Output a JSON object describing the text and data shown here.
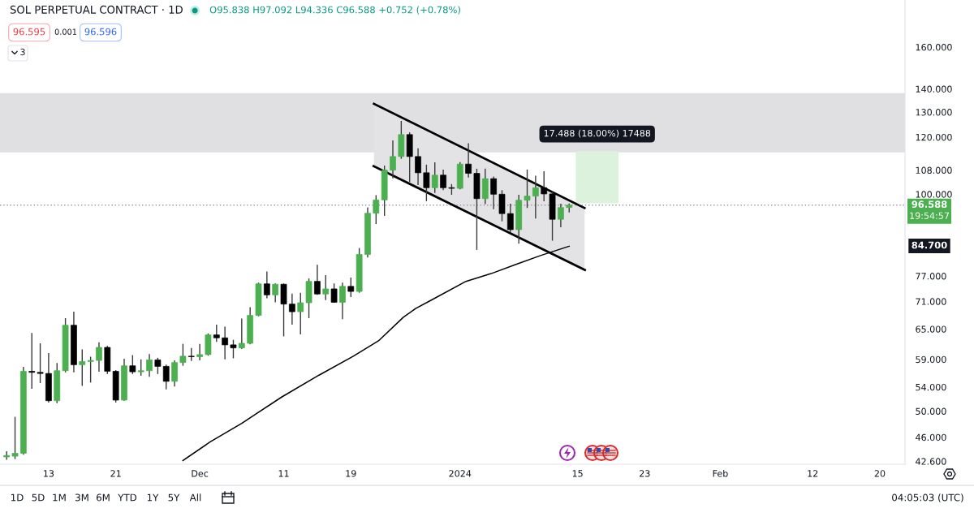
{
  "chart_data": {
    "type": "candlestick",
    "title": "SOL PERPETUAL CONTRACT · 1D",
    "subtitle": "O95.838 H97.092 L94.336 C96.588 +0.752 (+0.78%)",
    "log": true,
    "xlim": [
      "2023-11-07T05:00",
      "2024-02-23T00:00"
    ],
    "ylim": [
      42.2,
      186
    ],
    "xticks": [
      {
        "value": "2023-11-13",
        "label": "13"
      },
      {
        "value": "2023-11-21",
        "label": "21"
      },
      {
        "value": "2023-12-01",
        "label": "Dec"
      },
      {
        "value": "2023-12-11",
        "label": "11"
      },
      {
        "value": "2023-12-19",
        "label": "19"
      },
      {
        "value": "2024-01-01",
        "label": "2024"
      },
      {
        "value": "2024-01-15",
        "label": "15"
      },
      {
        "value": "2024-01-23",
        "label": "23"
      },
      {
        "value": "2024-02-01",
        "label": "Feb"
      },
      {
        "value": "2024-02-12",
        "label": "12"
      },
      {
        "value": "2024-02-20",
        "label": "20"
      }
    ],
    "yticks": [
      {
        "value": 160,
        "label": "160.000"
      },
      {
        "value": 140,
        "label": "140.000"
      },
      {
        "value": 130,
        "label": "130.000"
      },
      {
        "value": 120,
        "label": "120.000"
      },
      {
        "value": 108,
        "label": "108.000"
      },
      {
        "value": 100,
        "label": "100.000"
      },
      {
        "value": 77,
        "label": "77.000"
      },
      {
        "value": 71,
        "label": "71.000"
      },
      {
        "value": 65,
        "label": "65.000"
      },
      {
        "value": 59,
        "label": "59.000"
      },
      {
        "value": 54,
        "label": "54.000"
      },
      {
        "value": 50,
        "label": "50.000"
      },
      {
        "value": 46,
        "label": "46.000"
      },
      {
        "value": 42.6,
        "label": "42.600"
      }
    ],
    "bands": [
      {
        "axis": "y",
        "from": 114.3,
        "to": 138.1,
        "color": "#e0e0e3"
      }
    ],
    "ref_lines": [
      {
        "axis": "y",
        "value": 96.588,
        "label": "96.588",
        "color": "#9598a1",
        "line_style": "dotted"
      }
    ],
    "annotations": [
      "96.595",
      "0.001",
      "96.596",
      "3",
      "19:54:57",
      "84.700",
      {
        "text": "17.488 (18.00%) 17488",
        "x": "2024-01-17T08:00",
        "y": 114.648
      },
      "1D",
      "5D",
      "1M",
      "3M",
      "6M",
      "YTD",
      "1Y",
      "5Y",
      "All",
      "04:05:03 (UTC)"
    ],
    "series": [
      {
        "type": "line",
        "color": "#000000",
        "x": [
          "2023-12-21T18:00",
          "2024-01-15T20:00"
        ],
        "values": [
          133.5,
          95.7
        ],
        "upper": [
          133.5,
          95.7
        ],
        "lower": [
          109.4,
          78.5
        ]
      },
      {
        "type": "line",
        "color": "#000000",
        "x": [
          "2023-12-21T17:00",
          "2024-01-15T21:00"
        ],
        "values": [
          109.4,
          78.5
        ]
      },
      {
        "type": "bar",
        "color": "#dcf2dd",
        "x": [
          "2024-01-17T08:00"
        ],
        "values": [
          17.488
        ],
        "base": [
          97.16
        ]
      },
      {
        "type": "line",
        "color": "#000000",
        "x": [
          "2023-11-29",
          "2023-12-02T05:00",
          "2023-12-06",
          "2023-12-10T18:00",
          "2023-12-15T05:00",
          "2023-12-19T07:00",
          "2023-12-22T07:00",
          "2023-12-25T06:00",
          "2023-12-26T17:00",
          "2023-12-28T14:00",
          "2024-01-01T17:00",
          "2024-01-04T17:00",
          "2024-01-07T16:00",
          "2024-01-10T14:00",
          "2024-01-14"
        ],
        "values": [
          42.7,
          45.3,
          48.1,
          52.3,
          56.1,
          59.6,
          62.6,
          67.5,
          69.4,
          71.3,
          75.7,
          77.6,
          79.9,
          82.2,
          84.7
        ]
      },
      {
        "color": "#3a3a3a",
        "x": [
          "2023-11-08",
          "2023-11-09",
          "2023-11-10",
          "2023-11-11",
          "2023-11-12",
          "2023-11-13",
          "2023-11-14",
          "2023-11-15",
          "2023-11-16",
          "2023-11-17",
          "2023-11-18",
          "2023-11-19",
          "2023-11-20",
          "2023-11-21",
          "2023-11-22",
          "2023-11-23",
          "2023-11-24",
          "2023-11-25",
          "2023-11-26",
          "2023-11-27",
          "2023-11-28",
          "2023-11-29",
          "2023-11-30",
          "2023-12-01",
          "2023-12-02",
          "2023-12-03",
          "2023-12-04",
          "2023-12-05",
          "2023-12-06",
          "2023-12-07",
          "2023-12-08",
          "2023-12-09",
          "2023-12-10",
          "2023-12-11",
          "2023-12-12",
          "2023-12-13",
          "2023-12-14",
          "2023-12-15",
          "2023-12-16",
          "2023-12-17",
          "2023-12-18",
          "2023-12-19",
          "2023-12-20",
          "2023-12-21",
          "2023-12-22",
          "2023-12-23",
          "2023-12-24",
          "2023-12-25",
          "2023-12-26",
          "2023-12-27",
          "2023-12-28",
          "2023-12-29",
          "2023-12-30",
          "2023-12-31",
          "2024-01-01",
          "2024-01-02",
          "2024-01-03",
          "2024-01-04",
          "2024-01-05",
          "2024-01-06",
          "2024-01-07",
          "2024-01-08",
          "2024-01-09",
          "2024-01-10",
          "2024-01-11",
          "2024-01-12",
          "2024-01-13",
          "2024-01-14"
        ],
        "ohlc": [
          [
            43.2,
            44.0,
            42.8,
            43.4
          ],
          [
            43.3,
            49.1,
            42.9,
            43.7
          ],
          [
            43.7,
            57.6,
            43.5,
            56.8
          ],
          [
            56.8,
            64.2,
            53.7,
            56.6
          ],
          [
            56.6,
            62.1,
            54.7,
            56.4
          ],
          [
            56.4,
            60.2,
            51.4,
            51.7
          ],
          [
            51.7,
            58.3,
            51.3,
            56.9
          ],
          [
            56.9,
            67.3,
            56.6,
            65.8
          ],
          [
            65.8,
            68.7,
            56.6,
            58.0
          ],
          [
            58.0,
            60.9,
            54.2,
            58.6
          ],
          [
            58.6,
            59.5,
            54.8,
            58.8
          ],
          [
            58.8,
            62.3,
            56.7,
            61.3
          ],
          [
            61.3,
            61.6,
            56.3,
            56.8
          ],
          [
            56.8,
            57.0,
            51.4,
            51.8
          ],
          [
            51.8,
            59.1,
            51.7,
            57.8
          ],
          [
            57.8,
            59.8,
            56.3,
            56.7
          ],
          [
            56.7,
            59.0,
            56.0,
            56.9
          ],
          [
            56.9,
            60.0,
            55.8,
            58.9
          ],
          [
            58.9,
            59.3,
            56.3,
            57.7
          ],
          [
            57.7,
            58.0,
            53.6,
            55.0
          ],
          [
            55.0,
            58.8,
            54.1,
            58.4
          ],
          [
            58.4,
            62.0,
            57.8,
            59.6
          ],
          [
            59.6,
            61.2,
            58.7,
            59.5
          ],
          [
            59.5,
            62.0,
            58.8,
            59.9
          ],
          [
            59.9,
            64.1,
            59.7,
            63.8
          ],
          [
            63.8,
            65.9,
            62.4,
            63.2
          ],
          [
            63.2,
            65.5,
            59.0,
            61.8
          ],
          [
            61.8,
            62.8,
            59.2,
            61.2
          ],
          [
            61.2,
            67.2,
            61.0,
            62.1
          ],
          [
            62.1,
            69.7,
            61.9,
            67.9
          ],
          [
            67.9,
            75.4,
            67.7,
            75.1
          ],
          [
            75.1,
            78.1,
            71.7,
            72.5
          ],
          [
            72.5,
            75.2,
            70.8,
            75.0
          ],
          [
            75.0,
            75.2,
            63.5,
            70.4
          ],
          [
            70.4,
            72.8,
            65.9,
            68.7
          ],
          [
            68.7,
            73.0,
            63.9,
            70.7
          ],
          [
            70.7,
            76.4,
            67.3,
            75.7
          ],
          [
            75.7,
            79.8,
            72.5,
            72.7
          ],
          [
            72.7,
            77.2,
            71.3,
            73.9
          ],
          [
            73.9,
            75.2,
            70.7,
            70.8
          ],
          [
            70.8,
            75.4,
            67.1,
            74.5
          ],
          [
            74.5,
            76.6,
            72.0,
            73.3
          ],
          [
            73.3,
            84.2,
            73.0,
            82.5
          ],
          [
            82.5,
            95.9,
            81.7,
            94.1
          ],
          [
            94.1,
            99.7,
            90.9,
            98.2
          ],
          [
            98.2,
            109.6,
            93.3,
            108.0
          ],
          [
            108.0,
            118.8,
            105.2,
            112.8
          ],
          [
            112.8,
            126.4,
            112.0,
            121.0
          ],
          [
            121.0,
            121.9,
            104.0,
            112.8
          ],
          [
            112.8,
            115.8,
            103.0,
            107.1
          ],
          [
            107.1,
            109.9,
            97.8,
            102.1
          ],
          [
            102.1,
            110.7,
            100.4,
            106.3
          ],
          [
            106.3,
            108.2,
            101.3,
            102.1
          ],
          [
            102.1,
            103.3,
            99.8,
            101.9
          ],
          [
            101.9,
            110.8,
            101.6,
            110.1
          ],
          [
            110.1,
            117.7,
            105.5,
            106.9
          ],
          [
            106.9,
            108.5,
            83.7,
            98.6
          ],
          [
            98.6,
            108.5,
            96.9,
            105.1
          ],
          [
            105.1,
            105.8,
            95.3,
            100.0
          ],
          [
            100.0,
            101.3,
            91.7,
            94.0
          ],
          [
            94.0,
            97.0,
            88.6,
            89.3
          ],
          [
            89.3,
            99.8,
            85.4,
            98.1
          ],
          [
            98.1,
            108.2,
            95.7,
            99.4
          ],
          [
            99.4,
            106.1,
            92.5,
            102.1
          ],
          [
            102.1,
            107.6,
            97.8,
            100.1
          ],
          [
            100.1,
            100.8,
            86.2,
            92.3
          ],
          [
            92.3,
            97.0,
            90.0,
            95.838
          ],
          [
            95.838,
            97.092,
            94.336,
            96.588
          ]
        ],
        "colors": [
          "#4caf50",
          "#4caf50",
          "#4caf50",
          "#000000",
          "#000000",
          "#000000",
          "#4caf50",
          "#4caf50",
          "#000000",
          "#4caf50",
          "#4caf50",
          "#4caf50",
          "#000000",
          "#000000",
          "#4caf50",
          "#000000",
          "#4caf50",
          "#4caf50",
          "#000000",
          "#000000",
          "#4caf50",
          "#4caf50",
          "#000000",
          "#4caf50",
          "#4caf50",
          "#000000",
          "#000000",
          "#000000",
          "#4caf50",
          "#4caf50",
          "#4caf50",
          "#000000",
          "#4caf50",
          "#000000",
          "#000000",
          "#4caf50",
          "#4caf50",
          "#000000",
          "#4caf50",
          "#000000",
          "#4caf50",
          "#000000",
          "#4caf50",
          "#4caf50",
          "#4caf50",
          "#4caf50",
          "#4caf50",
          "#4caf50",
          "#000000",
          "#000000",
          "#000000",
          "#4caf50",
          "#000000",
          "#000000",
          "#4caf50",
          "#000000",
          "#000000",
          "#4caf50",
          "#000000",
          "#000000",
          "#000000",
          "#4caf50",
          "#4caf50",
          "#4caf50",
          "#000000",
          "#000000",
          "#4caf50",
          "#4caf50"
        ]
      }
    ]
  }
}
